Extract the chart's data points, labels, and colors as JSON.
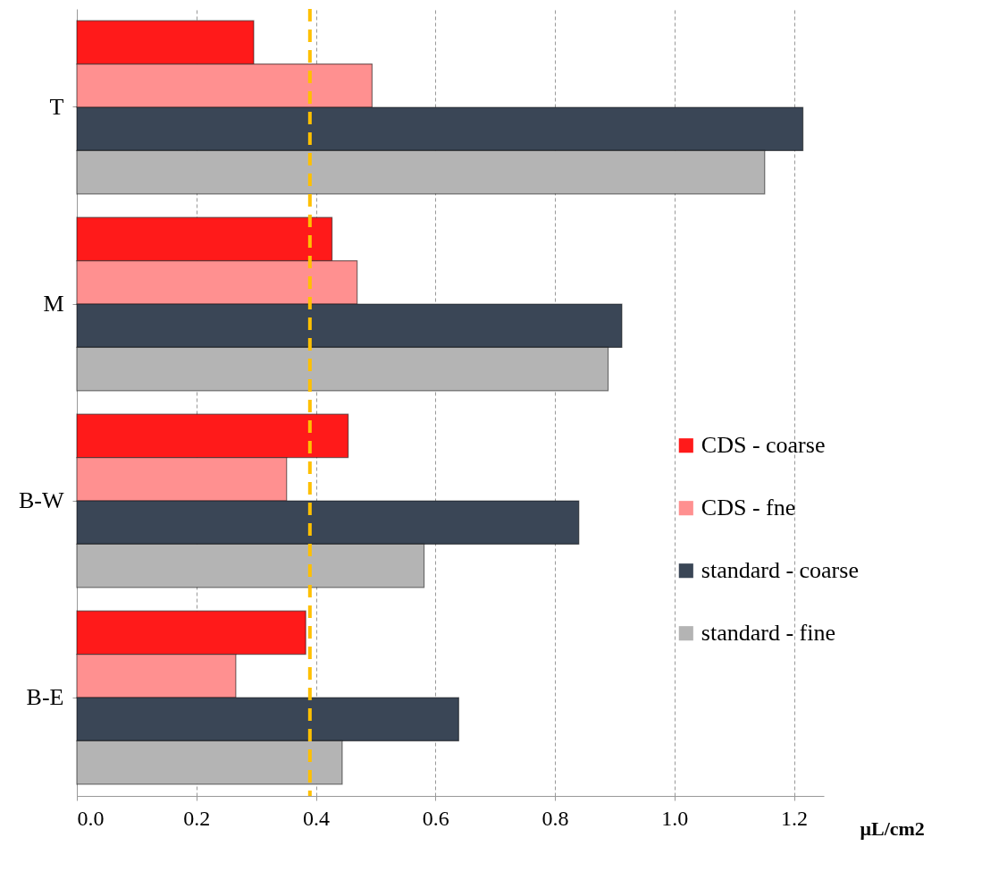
{
  "chart_data": {
    "type": "bar",
    "orientation": "horizontal",
    "categories": [
      "T",
      "M",
      "B-W",
      "B-E"
    ],
    "series": [
      {
        "name": "CDS - coarse",
        "color": "#ff1a1a",
        "values": [
          0.296,
          0.427,
          0.454,
          0.383
        ]
      },
      {
        "name": "CDS - fne",
        "color": "#ff9090",
        "values": [
          0.494,
          0.469,
          0.351,
          0.266
        ]
      },
      {
        "name": "standard - coarse",
        "color": "#3a4656",
        "values": [
          1.215,
          0.912,
          0.84,
          0.639
        ]
      },
      {
        "name": "standard - fine",
        "color": "#b4b4b4",
        "values": [
          1.151,
          0.889,
          0.581,
          0.444
        ]
      }
    ],
    "xlabel": "μL/cm2",
    "xlim": [
      0,
      1.25
    ],
    "xticks": [
      {
        "value": 0,
        "label": "0.0"
      },
      0.2,
      0.4,
      0.6,
      0.8,
      {
        "value": 1,
        "label": "1.0"
      },
      1.2
    ],
    "ref_lines": [
      {
        "axis": "x",
        "value": 0.39,
        "color": "#ffc000",
        "line_style": "dashed"
      }
    ],
    "grid": "x",
    "legend": "right"
  }
}
